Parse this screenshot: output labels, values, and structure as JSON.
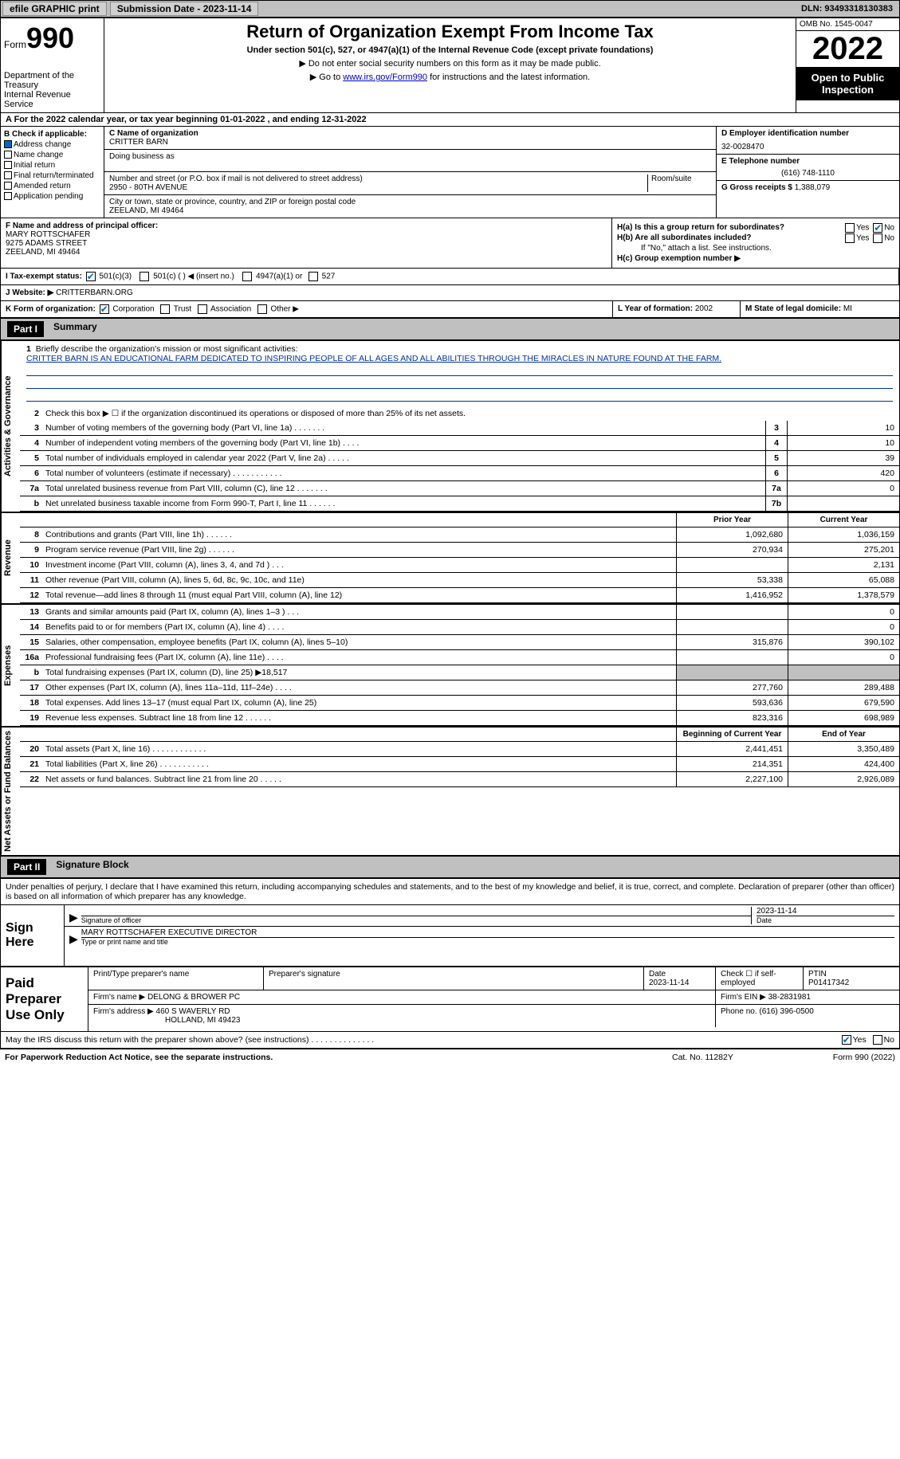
{
  "topbar": {
    "efile_label": "efile GRAPHIC print",
    "submission_label": "Submission Date - 2023-11-14",
    "dln_label": "DLN: 93493318130383"
  },
  "header": {
    "form_word": "Form",
    "form_number": "990",
    "dept": "Department of the Treasury\nInternal Revenue Service",
    "title": "Return of Organization Exempt From Income Tax",
    "subtitle": "Under section 501(c), 527, or 4947(a)(1) of the Internal Revenue Code (except private foundations)",
    "instr1": "▶ Do not enter social security numbers on this form as it may be made public.",
    "instr2_pre": "▶ Go to ",
    "instr2_link": "www.irs.gov/Form990",
    "instr2_post": " for instructions and the latest information.",
    "omb": "OMB No. 1545-0047",
    "year": "2022",
    "inspect": "Open to Public Inspection"
  },
  "row_a": "A   For the 2022 calendar year, or tax year beginning 01-01-2022    , and ending 12-31-2022",
  "section_b": {
    "label": "B Check if applicable:",
    "items": [
      "Address change",
      "Name change",
      "Initial return",
      "Final return/terminated",
      "Amended return",
      "Application pending"
    ]
  },
  "section_c": {
    "name_label": "C Name of organization",
    "name": "CRITTER BARN",
    "dba_label": "Doing business as",
    "addr_label": "Number and street (or P.O. box if mail is not delivered to street address)",
    "room_label": "Room/suite",
    "addr": "2950 - 80TH AVENUE",
    "city_label": "City or town, state or province, country, and ZIP or foreign postal code",
    "city": "ZEELAND, MI  49464"
  },
  "section_d": {
    "ein_label": "D Employer identification number",
    "ein": "32-0028470",
    "phone_label": "E Telephone number",
    "phone": "(616) 748-1110",
    "gross_label": "G Gross receipts $",
    "gross": "1,388,079"
  },
  "section_f": {
    "label": "F Name and address of principal officer:",
    "name": "MARY ROTTSCHAFER",
    "addr1": "9275 ADAMS STREET",
    "addr2": "ZEELAND, MI  49464"
  },
  "section_h": {
    "ha_label": "H(a)  Is this a group return for subordinates?",
    "hb_label": "H(b)  Are all subordinates included?",
    "hb_note": "If \"No,\" attach a list. See instructions.",
    "hc_label": "H(c)  Group exemption number ▶"
  },
  "section_i": {
    "label": "I    Tax-exempt status:",
    "opts": [
      "501(c)(3)",
      "501(c) (   ) ◀ (insert no.)",
      "4947(a)(1) or",
      "527"
    ]
  },
  "section_j": {
    "label": "J   Website: ▶",
    "value": "CRITTERBARN.ORG"
  },
  "section_k": {
    "label": "K Form of organization:",
    "opts": [
      "Corporation",
      "Trust",
      "Association",
      "Other ▶"
    ]
  },
  "section_l": {
    "label": "L Year of formation:",
    "value": "2002"
  },
  "section_m": {
    "label": "M State of legal domicile:",
    "value": "MI"
  },
  "part1": {
    "part_label": "Part I",
    "title": "Summary",
    "line1_label": "Briefly describe the organization's mission or most significant activities:",
    "mission": "CRITTER BARN IS AN EDUCATIONAL FARM DEDICATED TO INSPIRING PEOPLE OF ALL AGES AND ALL ABILITIES THROUGH THE MIRACLES IN NATURE FOUND AT THE FARM.",
    "line2": "Check this box ▶ ☐  if the organization discontinued its operations or disposed of more than 25% of its net assets.",
    "vtabs": [
      "Activities & Governance",
      "Revenue",
      "Expenses",
      "Net Assets or Fund Balances"
    ],
    "lines_gov": [
      {
        "n": "3",
        "d": "Number of voting members of the governing body (Part VI, line 1a)   .    .    .    .    .    .    .",
        "b": "3",
        "v": "10"
      },
      {
        "n": "4",
        "d": "Number of independent voting members of the governing body (Part VI, line 1b)   .    .    .    .",
        "b": "4",
        "v": "10"
      },
      {
        "n": "5",
        "d": "Total number of individuals employed in calendar year 2022 (Part V, line 2a)   .    .    .    .    .",
        "b": "5",
        "v": "39"
      },
      {
        "n": "6",
        "d": "Total number of volunteers (estimate if necessary)    .    .    .    .    .    .    .    .    .    .    .",
        "b": "6",
        "v": "420"
      },
      {
        "n": "7a",
        "d": "Total unrelated business revenue from Part VIII, column (C), line 12   .    .    .    .    .    .    .",
        "b": "7a",
        "v": "0"
      },
      {
        "n": "b",
        "d": "Net unrelated business taxable income from Form 990-T, Part I, line 11   .    .    .    .    .    .",
        "b": "7b",
        "v": ""
      }
    ],
    "col_hdr1": "Prior Year",
    "col_hdr2": "Current Year",
    "lines_rev": [
      {
        "n": "8",
        "d": "Contributions and grants (Part VIII, line 1h)   .    .    .    .    .    .",
        "c1": "1,092,680",
        "c2": "1,036,159"
      },
      {
        "n": "9",
        "d": "Program service revenue (Part VIII, line 2g)   .    .    .    .    .    .",
        "c1": "270,934",
        "c2": "275,201"
      },
      {
        "n": "10",
        "d": "Investment income (Part VIII, column (A), lines 3, 4, and 7d )   .    .    .",
        "c1": "",
        "c2": "2,131"
      },
      {
        "n": "11",
        "d": "Other revenue (Part VIII, column (A), lines 5, 6d, 8c, 9c, 10c, and 11e)",
        "c1": "53,338",
        "c2": "65,088"
      },
      {
        "n": "12",
        "d": "Total revenue—add lines 8 through 11 (must equal Part VIII, column (A), line 12)",
        "c1": "1,416,952",
        "c2": "1,378,579"
      }
    ],
    "lines_exp": [
      {
        "n": "13",
        "d": "Grants and similar amounts paid (Part IX, column (A), lines 1–3 )   .    .    .",
        "c1": "",
        "c2": "0"
      },
      {
        "n": "14",
        "d": "Benefits paid to or for members (Part IX, column (A), line 4)   .    .    .    .",
        "c1": "",
        "c2": "0"
      },
      {
        "n": "15",
        "d": "Salaries, other compensation, employee benefits (Part IX, column (A), lines 5–10)",
        "c1": "315,876",
        "c2": "390,102"
      },
      {
        "n": "16a",
        "d": "Professional fundraising fees (Part IX, column (A), line 11e)   .    .    .    .",
        "c1": "",
        "c2": "0"
      },
      {
        "n": "b",
        "d": "Total fundraising expenses (Part IX, column (D), line 25) ▶18,517",
        "c1": "shaded",
        "c2": "shaded"
      },
      {
        "n": "17",
        "d": "Other expenses (Part IX, column (A), lines 11a–11d, 11f–24e)   .    .    .    .",
        "c1": "277,760",
        "c2": "289,488"
      },
      {
        "n": "18",
        "d": "Total expenses. Add lines 13–17 (must equal Part IX, column (A), line 25)",
        "c1": "593,636",
        "c2": "679,590"
      },
      {
        "n": "19",
        "d": "Revenue less expenses. Subtract line 18 from line 12   .    .    .    .    .    .",
        "c1": "823,316",
        "c2": "698,989"
      }
    ],
    "col_hdr3": "Beginning of Current Year",
    "col_hdr4": "End of Year",
    "lines_net": [
      {
        "n": "20",
        "d": "Total assets (Part X, line 16)   .    .    .    .    .    .    .    .    .    .    .    .",
        "c1": "2,441,451",
        "c2": "3,350,489"
      },
      {
        "n": "21",
        "d": "Total liabilities (Part X, line 26)   .    .    .    .    .    .    .    .    .    .    .",
        "c1": "214,351",
        "c2": "424,400"
      },
      {
        "n": "22",
        "d": "Net assets or fund balances. Subtract line 21 from line 20   .    .    .    .    .",
        "c1": "2,227,100",
        "c2": "2,926,089"
      }
    ]
  },
  "part2": {
    "part_label": "Part II",
    "title": "Signature Block",
    "declaration": "Under penalties of perjury, I declare that I have examined this return, including accompanying schedules and statements, and to the best of my knowledge and belief, it is true, correct, and complete. Declaration of preparer (other than officer) is based on all information of which preparer has any knowledge.",
    "sign_here": "Sign Here",
    "sig_officer_label": "Signature of officer",
    "sig_date": "2023-11-14",
    "date_label": "Date",
    "name_title": "MARY ROTTSCHAFER  EXECUTIVE DIRECTOR",
    "name_title_label": "Type or print name and title",
    "paid_label": "Paid Preparer Use Only",
    "prep_name_label": "Print/Type preparer's name",
    "prep_sig_label": "Preparer's signature",
    "prep_date_label": "Date",
    "prep_date": "2023-11-14",
    "check_if_label": "Check ☐ if self-employed",
    "ptin_label": "PTIN",
    "ptin": "P01417342",
    "firm_name_label": "Firm's name    ▶",
    "firm_name": "DELONG & BROWER PC",
    "firm_ein_label": "Firm's EIN ▶",
    "firm_ein": "38-2831981",
    "firm_addr_label": "Firm's address ▶",
    "firm_addr1": "460 S WAVERLY RD",
    "firm_addr2": "HOLLAND, MI  49423",
    "firm_phone_label": "Phone no.",
    "firm_phone": "(616) 396-0500",
    "discuss": "May the IRS discuss this return with the preparer shown above? (see instructions)   .    .    .    .    .    .    .    .    .    .    .    .    .    ."
  },
  "footer": {
    "left": "For Paperwork Reduction Act Notice, see the separate instructions.",
    "mid": "Cat. No. 11282Y",
    "right": "Form 990 (2022)"
  }
}
